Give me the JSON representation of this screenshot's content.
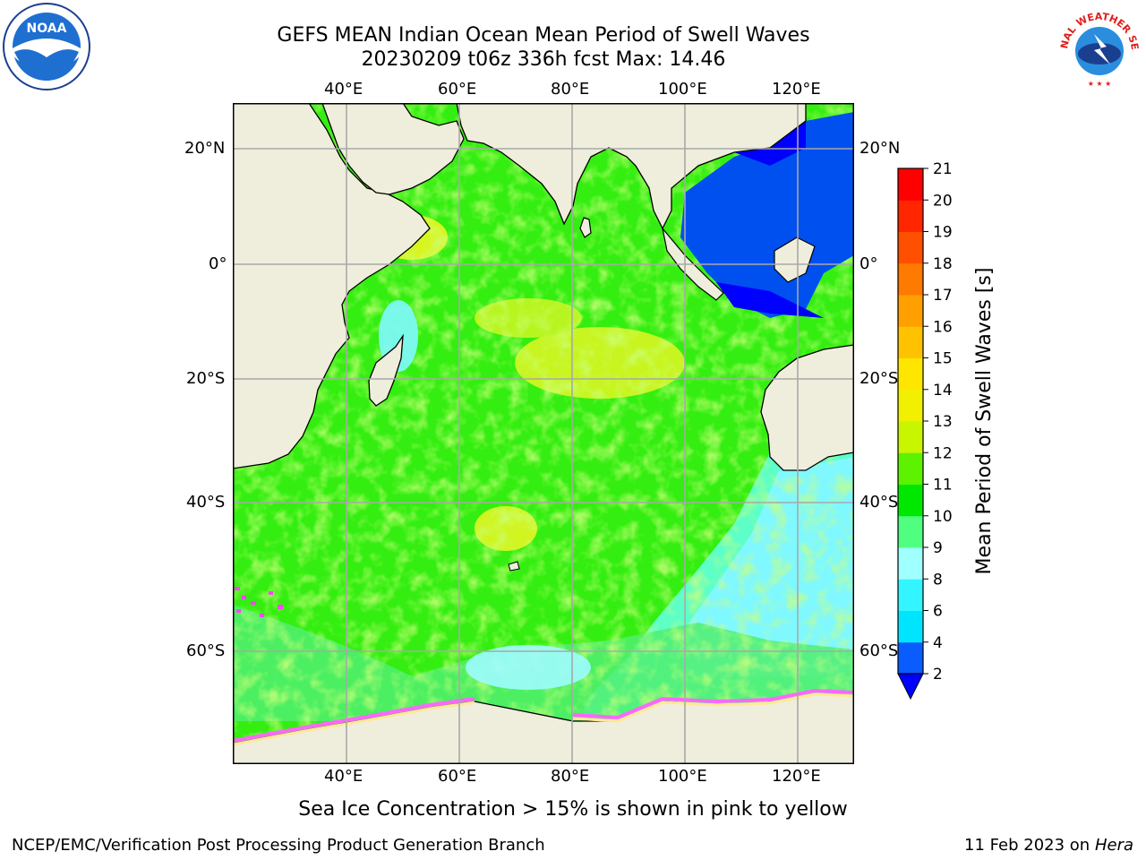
{
  "title": {
    "line1": "GEFS MEAN Indian Ocean Mean Period of Swell Waves",
    "line2": "20230209 t06z 336h fcst   Max: 14.46"
  },
  "map": {
    "lon_labels": [
      "40°E",
      "60°E",
      "80°E",
      "100°E",
      "120°E"
    ],
    "lat_labels": [
      "20°N",
      "0°",
      "20°S",
      "40°S",
      "60°S"
    ],
    "land_color": "#efeedc"
  },
  "colorbar": {
    "label": "Mean Period of Swell Waves [s]",
    "ticks": [
      "2",
      "4",
      "6",
      "8",
      "9",
      "10",
      "11",
      "12",
      "13",
      "14",
      "15",
      "16",
      "17",
      "18",
      "19",
      "20",
      "21"
    ],
    "colors": [
      "#0a5cff",
      "#00e5ff",
      "#33f5ff",
      "#a0ffff",
      "#50ff80",
      "#00e800",
      "#5cf200",
      "#c8f500",
      "#f0f000",
      "#ffe600",
      "#ffc200",
      "#ff9f00",
      "#ff7a00",
      "#ff5000",
      "#ff2600",
      "#ff0000"
    ],
    "under_color": "#0000ff"
  },
  "note": "Sea Ice Concentration > 15% is shown in pink to yellow",
  "footer": {
    "left": "NCEP/EMC/Verification Post Processing Product Generation Branch",
    "right_prefix": "11 Feb 2023 on",
    "right_host": "Hera"
  },
  "logos": {
    "noaa_text": "NOAA",
    "nws_text": "NATIONAL WEATHER SERVICE"
  }
}
